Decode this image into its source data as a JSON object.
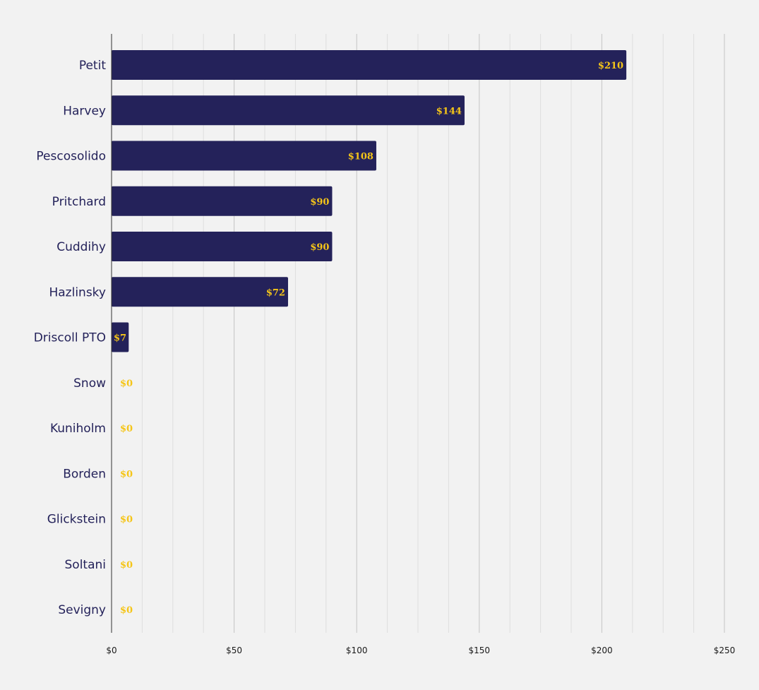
{
  "chart_data": {
    "type": "bar",
    "orientation": "horizontal",
    "title": "",
    "xlabel": "",
    "ylabel": "",
    "categories": [
      "Petit",
      "Harvey",
      "Pescosolido",
      "Pritchard",
      "Cuddihy",
      "Hazlinsky",
      "Driscoll PTO",
      "Snow",
      "Kuniholm",
      "Borden",
      "Glickstein",
      "Soltani",
      "Sevigny"
    ],
    "values": [
      210,
      144,
      108,
      90,
      90,
      72,
      7,
      0,
      0,
      0,
      0,
      0,
      0
    ],
    "value_labels": [
      "$210",
      "$144",
      "$108",
      "$90",
      "$90",
      "$72",
      "$7",
      "$0",
      "$0",
      "$0",
      "$0",
      "$0",
      "$0"
    ],
    "xlim": [
      0,
      250
    ],
    "x_ticks": [
      0,
      50,
      100,
      150,
      200,
      250
    ],
    "x_tick_labels": [
      "$0",
      "$50",
      "$100",
      "$150",
      "$200",
      "$250"
    ],
    "grid": true,
    "legend": "none",
    "colors": {
      "background": "#f2f2f2",
      "bar": "#24225a",
      "value_label": "#f5c518",
      "category_label": "#24225a",
      "grid_major": "#c4c4c4",
      "grid_minor": "#dedede",
      "axis": "#333333"
    }
  }
}
